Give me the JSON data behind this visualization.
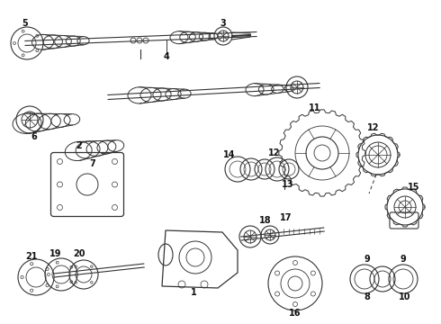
{
  "bg_color": "#ffffff",
  "line_color": "#333333",
  "text_color": "#111111",
  "fig_w": 4.9,
  "fig_h": 3.6,
  "dpi": 100
}
